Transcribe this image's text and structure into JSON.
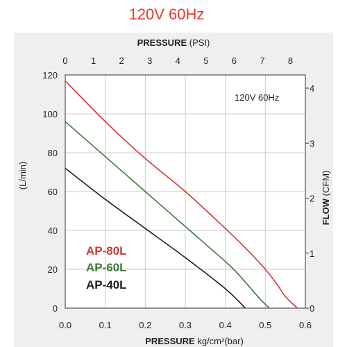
{
  "page_title": "120V 60Hz",
  "chart_data": {
    "type": "line",
    "title": "120V 60Hz",
    "annotation": "120V 60Hz",
    "x_bottom": {
      "label_bold": "PRESSURE",
      "label_unit": "kg/cm²(bar)",
      "range": [
        0.0,
        0.6
      ],
      "ticks": [
        "0.0",
        "0.1",
        "0.2",
        "0.3",
        "0.4",
        "0.5",
        "0.6"
      ]
    },
    "x_top": {
      "label_bold": "PRESSURE",
      "label_unit": "(PSI)",
      "range": [
        0,
        8.53
      ],
      "ticks": [
        "0",
        "1",
        "2",
        "3",
        "4",
        "5",
        "6",
        "7",
        "8"
      ]
    },
    "y_left": {
      "label": "(L/min)",
      "range": [
        0,
        120
      ],
      "ticks": [
        "0",
        "20",
        "40",
        "60",
        "80",
        "100",
        "120"
      ]
    },
    "y_right": {
      "label_bold": "FLOW",
      "label_unit": "(CFM)",
      "range": [
        0,
        4.24
      ],
      "ticks": [
        "0",
        "1",
        "2",
        "3",
        "4"
      ]
    },
    "grid": true,
    "legend_position": "bottom-left",
    "series": [
      {
        "name": "AP-80L",
        "color": "#d03a32",
        "points": [
          [
            0,
            117
          ],
          [
            0.1,
            96
          ],
          [
            0.2,
            77
          ],
          [
            0.3,
            60
          ],
          [
            0.4,
            41
          ],
          [
            0.45,
            31
          ],
          [
            0.5,
            20
          ],
          [
            0.53,
            12
          ],
          [
            0.55,
            6
          ],
          [
            0.58,
            0
          ]
        ]
      },
      {
        "name": "AP-60L",
        "color": "#3a7a3a",
        "points": [
          [
            0,
            96
          ],
          [
            0.1,
            78
          ],
          [
            0.2,
            60
          ],
          [
            0.3,
            42
          ],
          [
            0.4,
            24
          ],
          [
            0.43,
            18
          ],
          [
            0.46,
            11
          ],
          [
            0.49,
            4
          ],
          [
            0.51,
            0
          ]
        ]
      },
      {
        "name": "AP-40L",
        "color": "#1e1e24",
        "points": [
          [
            0,
            72
          ],
          [
            0.1,
            56
          ],
          [
            0.2,
            41
          ],
          [
            0.3,
            26
          ],
          [
            0.4,
            10
          ],
          [
            0.45,
            0
          ]
        ]
      }
    ]
  }
}
